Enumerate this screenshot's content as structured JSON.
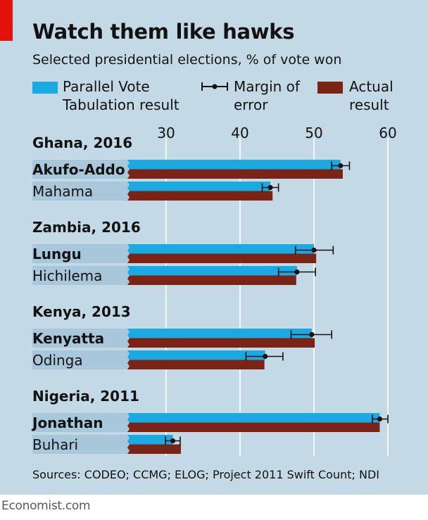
{
  "header": {
    "title": "Watch them like hawks",
    "subtitle": "Selected presidential elections, % of vote won"
  },
  "legend": {
    "pvt_line1": "Parallel Vote",
    "pvt_line2": "Tabulation result",
    "moe_line1": "Margin of",
    "moe_line2": "error",
    "actual_line1": "Actual",
    "actual_line2": "result"
  },
  "colors": {
    "background": "#c4d9e6",
    "pvt": "#1aa9e0",
    "actual": "#7b2415",
    "label_bg": "#a9c7da",
    "accent": "#e3120b"
  },
  "footer": {
    "sources": "Sources: CODEO; CCMG; ELOG; Project 2011 Swift Count; NDI",
    "brand": "Economist.com"
  },
  "chart_data": {
    "type": "bar",
    "orientation": "horizontal",
    "xlim": [
      22,
      62
    ],
    "xticks": [
      30,
      40,
      50,
      60
    ],
    "grid": true,
    "groups": [
      {
        "name": "Ghana, 2016",
        "candidates": [
          {
            "name": "Akufo-Addo",
            "pvt": 53.6,
            "moe": [
              52.4,
              54.8
            ],
            "actual": 53.9
          },
          {
            "name": "Mahama",
            "pvt": 44.1,
            "moe": [
              43.0,
              45.2
            ],
            "actual": 44.4
          }
        ]
      },
      {
        "name": "Zambia, 2016",
        "candidates": [
          {
            "name": "Lungu",
            "pvt": 50.0,
            "moe": [
              47.5,
              52.6
            ],
            "actual": 50.3
          },
          {
            "name": "Hichilema",
            "pvt": 47.7,
            "moe": [
              45.2,
              50.2
            ],
            "actual": 47.6
          }
        ]
      },
      {
        "name": "Kenya, 2013",
        "candidates": [
          {
            "name": "Kenyatta",
            "pvt": 49.7,
            "moe": [
              46.9,
              52.4
            ],
            "actual": 50.1
          },
          {
            "name": "Odinga",
            "pvt": 43.4,
            "moe": [
              40.8,
              45.8
            ],
            "actual": 43.3
          }
        ]
      },
      {
        "name": "Nigeria, 2011",
        "candidates": [
          {
            "name": "Jonathan",
            "pvt": 58.9,
            "moe": [
              57.9,
              60.0
            ],
            "actual": 58.9
          },
          {
            "name": "Buhari",
            "pvt": 30.9,
            "moe": [
              29.9,
              31.9
            ],
            "actual": 32.0
          }
        ]
      }
    ]
  }
}
